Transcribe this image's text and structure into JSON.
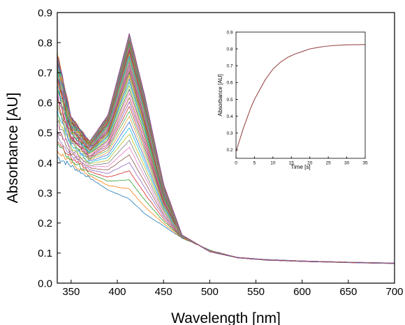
{
  "chart_data": [
    {
      "type": "line",
      "title": "",
      "xlabel": "Wavelength [nm]",
      "ylabel": "Absorbance [AU]",
      "xlim": [
        335,
        700
      ],
      "ylim": [
        0.0,
        0.9
      ],
      "xticks": [
        350,
        400,
        450,
        500,
        550,
        600,
        650,
        700
      ],
      "xtick_labels": [
        "350",
        "400",
        "450",
        "500",
        "550",
        "600",
        "650",
        "700"
      ],
      "yticks": [
        0.0,
        0.1,
        0.2,
        0.3,
        0.4,
        0.5,
        0.6,
        0.7,
        0.8,
        0.9
      ],
      "ytick_labels": [
        "0.0",
        "0.1",
        "0.2",
        "0.3",
        "0.4",
        "0.5",
        "0.6",
        "0.7",
        "0.8",
        "0.9"
      ],
      "grid": false,
      "legend": "none",
      "description_series": {
        "count": 55,
        "peak_wavelength_nm": 413,
        "first_spectrum": {
          "x": [
            335,
            350,
            370,
            390,
            413,
            430,
            450,
            470,
            500,
            530,
            560,
            600,
            650,
            700
          ],
          "y": [
            0.42,
            0.39,
            0.35,
            0.31,
            0.28,
            0.23,
            0.19,
            0.15,
            0.11,
            0.085,
            0.077,
            0.073,
            0.069,
            0.066
          ]
        },
        "last_spectrum": {
          "x": [
            335,
            350,
            370,
            390,
            413,
            430,
            450,
            470,
            500,
            530,
            560,
            600,
            650,
            700
          ],
          "y": [
            0.76,
            0.55,
            0.47,
            0.56,
            0.83,
            0.62,
            0.33,
            0.16,
            0.105,
            0.085,
            0.078,
            0.073,
            0.069,
            0.066
          ]
        }
      }
    },
    {
      "type": "line",
      "title": "",
      "xlabel": "Time [s]",
      "ylabel": "Absorbance [AU]",
      "xlim": [
        0,
        35
      ],
      "ylim": [
        0.15,
        0.9
      ],
      "xticks": [
        0,
        5,
        10,
        15,
        20,
        25,
        30,
        35
      ],
      "xtick_labels": [
        "0",
        "5",
        "10",
        "15",
        "20",
        "25",
        "30",
        "35"
      ],
      "yticks": [
        0.2,
        0.3,
        0.4,
        0.5,
        0.6,
        0.7,
        0.8,
        0.9
      ],
      "ytick_labels": [
        "0.2",
        "0.3",
        "0.4",
        "0.5",
        "0.6",
        "0.7",
        "0.8",
        "0.9"
      ],
      "grid": false,
      "legend": "none",
      "series": [
        {
          "color": "#9b4a4a",
          "x": [
            0,
            1,
            2,
            3,
            4,
            5,
            6,
            7,
            8,
            9,
            10,
            12,
            14,
            16,
            18,
            20,
            22,
            24,
            26,
            28,
            30,
            32,
            35
          ],
          "y": [
            0.19,
            0.26,
            0.33,
            0.39,
            0.45,
            0.5,
            0.54,
            0.58,
            0.62,
            0.65,
            0.68,
            0.72,
            0.75,
            0.77,
            0.785,
            0.8,
            0.808,
            0.815,
            0.819,
            0.822,
            0.824,
            0.825,
            0.826
          ]
        }
      ]
    }
  ]
}
